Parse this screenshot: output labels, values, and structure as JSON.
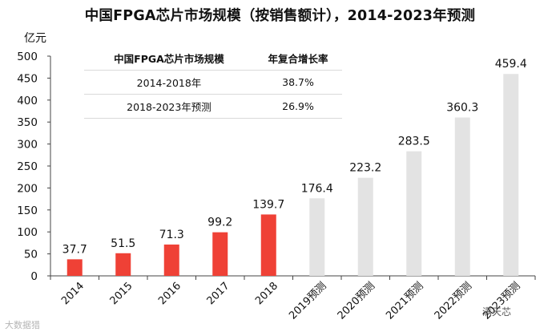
{
  "chart_data": {
    "type": "bar",
    "title": "中国FPGA芯片市场规模（按销售额计），2014-2023年预测",
    "unit_label": "亿元",
    "categories": [
      "2014",
      "2015",
      "2016",
      "2017",
      "2018",
      "2019预测",
      "2020预测",
      "2021预测",
      "2022预测",
      "2023预测"
    ],
    "values": [
      37.7,
      51.5,
      71.3,
      99.2,
      139.7,
      176.4,
      223.2,
      283.5,
      360.3,
      459.4
    ],
    "value_labels": [
      "37.7",
      "51.5",
      "71.3",
      "99.2",
      "139.7",
      "176.4",
      "223.2",
      "283.5",
      "360.3",
      "459.4"
    ],
    "ylim": [
      0,
      500
    ],
    "yticks": [
      0,
      50,
      100,
      150,
      200,
      250,
      300,
      350,
      400,
      450,
      500
    ],
    "grid": false,
    "colors": {
      "actual": "#ef4136",
      "forecast": "#e3e3e3"
    },
    "forecast_start_index": 5
  },
  "inset_table": {
    "headers": [
      "中国FPGA芯片市场规模",
      "年复合增长率"
    ],
    "rows": [
      [
        "2014-2018年",
        "38.7%"
      ],
      [
        "2018-2023年预测",
        "26.9%"
      ]
    ]
  },
  "watermarks": {
    "left": "大数据猎",
    "right": "满天芯"
  }
}
